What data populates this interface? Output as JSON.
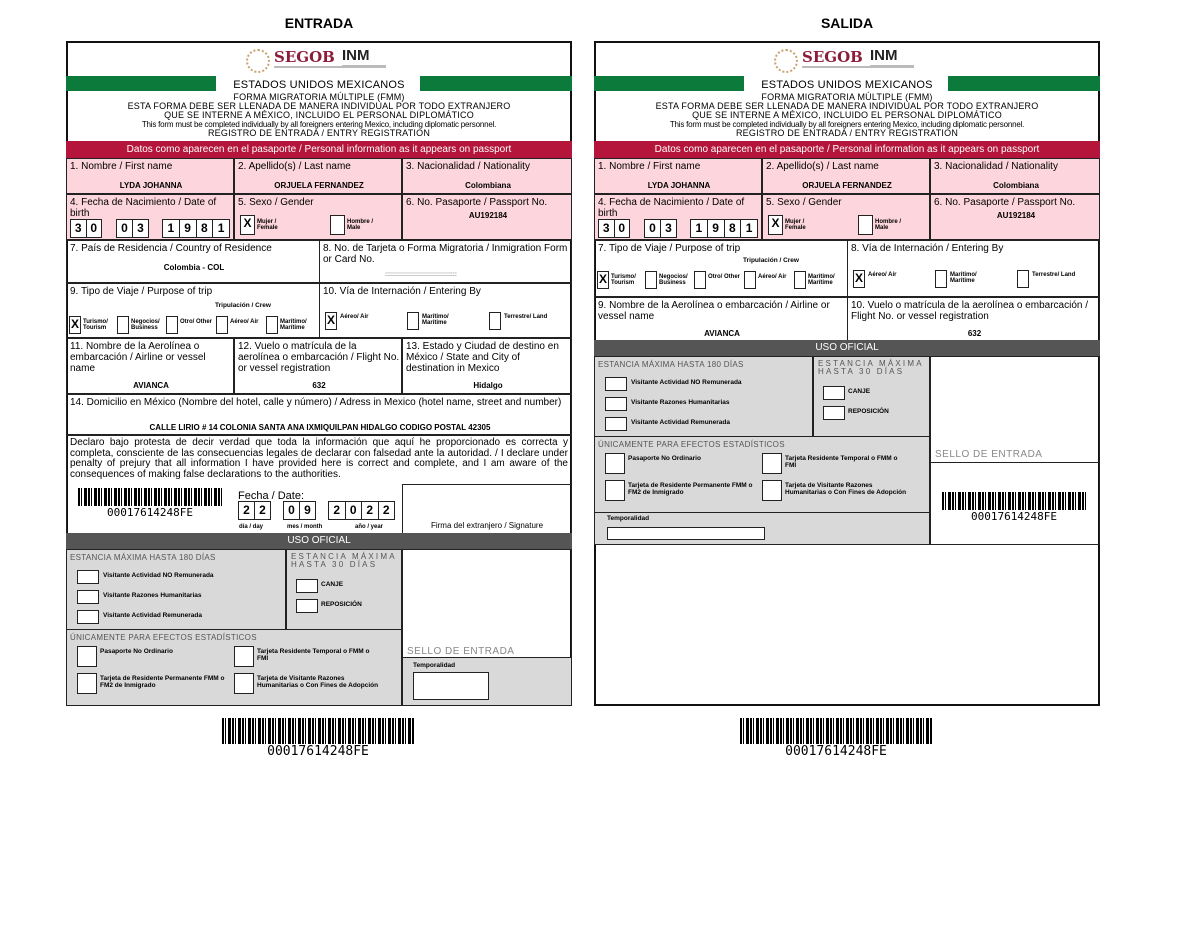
{
  "headings": {
    "entrada": "ENTRADA",
    "salida": "SALIDA"
  },
  "colors": {
    "green": "#0b7a3b",
    "red_band": "#b5153a",
    "pink": "#fdd5dc",
    "gray": "#d9d9d9",
    "dark_band": "#555555"
  },
  "header": {
    "segob": "SEGOB",
    "inm": "INM",
    "country": "ESTADOS UNIDOS MEXICANOS",
    "form_name": "FORMA MIGRATORIA MÚLTIPLE (FMM)",
    "line1": "ESTA FORMA DEBE SER LLENADA DE MANERA INDIVIDUAL POR TODO EXTRANJERO",
    "line2": "QUE SE INTERNE A MÉXICO, INCLUIDO EL PERSONAL DIPLOMÁTICO",
    "line3": "This form must be completed individually by all foreigners entering Mexico, including diplomatic personnel.",
    "line4": "REGISTRO DE ENTRADA / ENTRY REGISTRATION",
    "band": "Datos como aparecen en el pasaporte / Personal information as it appears on passport"
  },
  "personal": {
    "first_name_label": "1. Nombre / First name",
    "first_name": "LYDA JOHANNA",
    "last_name_label": "2. Apellido(s) / Last name",
    "last_name": "ORJUELA FERNANDEZ",
    "nationality_label": "3. Nacionalidad / Nationality",
    "nationality": "Colombiana",
    "birth_label": "4. Fecha de Nacimiento / Date of birth",
    "birth_day": [
      "3",
      "0"
    ],
    "birth_month": [
      "0",
      "3"
    ],
    "birth_year": [
      "1",
      "9",
      "8",
      "1"
    ],
    "sex_label": "5. Sexo / Gender",
    "female_label": "Mujer / Female",
    "female_checked": true,
    "male_label": "Hombre / Male",
    "male_checked": false,
    "passport_label": "6. No. Pasaporte / Passport No.",
    "passport": "AU192184"
  },
  "trip": {
    "crew_label": "Tripulación / Crew",
    "options": [
      {
        "label": "Turismo/ Tourism",
        "checked": true
      },
      {
        "label": "Negocios/ Business",
        "checked": false
      },
      {
        "label": "Otro/ Other",
        "checked": false
      },
      {
        "label": "Aéreo/ Air",
        "checked": false
      },
      {
        "label": "Marítimo/ Marítime",
        "checked": false
      }
    ],
    "entry": [
      {
        "label": "Aéreo/ Air",
        "checked": true
      },
      {
        "label": "Marítimo/ Marítime",
        "checked": false
      },
      {
        "label": "Terrestre/ Land",
        "checked": false
      }
    ],
    "airline": "AVIANCA",
    "flight": "632"
  },
  "entrada": {
    "residence_label": "7. País de Residencia / Country of Residence",
    "residence": "Colombia - COL",
    "card_label": "8. No. de Tarjeta o Forma Migratoria / Inmigration Form or Card No.",
    "card": "::::::::::::::::::::::::::::::::::::",
    "trip_label": "9. Tipo de Viaje / Purpose of trip",
    "entry_label": "10. Vía de Internación / Entering By",
    "airline_label": "11. Nombre de la Aerolínea o embarcación / Airline or vessel name",
    "flight_label": "12. Vuelo o matrícula de la aerolínea o embarcación / Flight No. or vessel registration",
    "dest_label": "13. Estado y Ciudad de destino en México / State and City of destination in Mexico",
    "dest": "Hidalgo",
    "address_label": "14. Domicilio en México (Nombre del hotel, calle y número) / Adress in Mexico (hotel name, street and number)",
    "address": "CALLE LIRIO # 14 COLONIA SANTA ANA IXMIQUILPAN HIDALGO CODIGO POSTAL 42305",
    "declaration": "Declaro bajo protesta de decir verdad que toda la información que aquí he proporcionado es correcta y completa, consciente de las consecuencias legales de declarar con falsedad ante la autoridad. / I declare under penalty of prejury that all information I have provided here is correct and complete, and I am aware of the consequences of making false declarations to the authorities.",
    "date_label": "Fecha / Date:",
    "date_day": [
      "2",
      "2"
    ],
    "date_month": [
      "0",
      "9"
    ],
    "date_year": [
      "2",
      "0",
      "2",
      "2"
    ],
    "day_caption": "día / day",
    "month_caption": "mes / month",
    "year_caption": "año / year",
    "signature_label": "Firma del extranjero / Signature"
  },
  "salida": {
    "trip_label": "7. Tipo de Viaje / Purpose of trip",
    "entry_label": "8. Vía de Internación / Entering By",
    "airline_label": "9. Nombre de la Aerolínea o embarcación / Airline or vessel name",
    "flight_label": "10. Vuelo o matrícula de la aerolínea o embarcación / Flight No. or vessel registration"
  },
  "official": {
    "band": "USO OFICIAL",
    "stay180_title": "ESTANCIA MÁXIMA HASTA 180 DÍAS",
    "stay180_items": [
      "Visitante Actividad NO Remunerada",
      "Visitante Razones Humanitarias",
      "Visitante Actividad Remunerada"
    ],
    "stay30_title": "ESTANCIA MÁXIMA HASTA 30 DÍAS",
    "stay30_items": [
      "CANJE",
      "REPOSICIÓN"
    ],
    "stats_title": "ÚNICAMENTE PARA EFECTOS ESTADÍSTICOS",
    "stats_items": [
      "Pasaporte No Ordinario",
      "Tarjeta Residente Temporal o FMM o FMI",
      "Tarjeta de Residente Permanente FMM o FM2 de Inmigrado",
      "Tarjeta de Visitante Razones Humanitarias o Con Fines de Adopción"
    ],
    "stamp_label": "SELLO DE ENTRADA",
    "temporality_label": "Temporalidad"
  },
  "barcode": "00017614248FE"
}
